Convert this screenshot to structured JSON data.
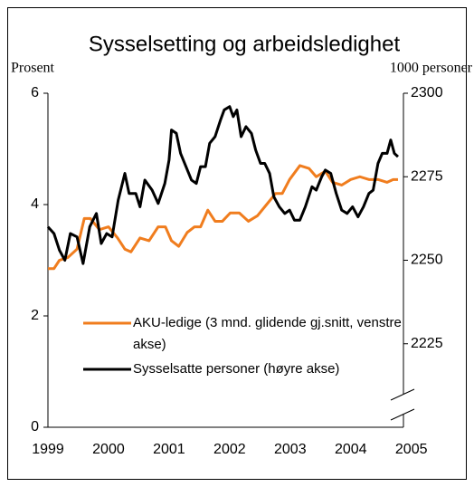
{
  "chart_data": {
    "type": "line",
    "title": "Sysselsetting og arbeidsledighet",
    "ylabel": "Prosent",
    "y2label": "1000 personer",
    "xlim": [
      1999,
      2004.87
    ],
    "xticks": [
      1999,
      2000,
      2001,
      2002,
      2003,
      2004,
      2005
    ],
    "ylim": [
      0,
      6
    ],
    "yticks": [
      0,
      2,
      4,
      6
    ],
    "y2lim": [
      2200,
      2300
    ],
    "y2ticks": [
      2225,
      2250,
      2275,
      2300
    ],
    "series": [
      {
        "name": "AKU-ledige (3 mnd. glidende gj.snitt, venstre akse)",
        "color": "#f07d1e",
        "x": [
          1999.0,
          1999.1,
          1999.19,
          1999.33,
          1999.48,
          1999.6,
          1999.7,
          1999.85,
          2000.0,
          2000.15,
          2000.27,
          2000.37,
          2000.52,
          2000.67,
          2000.82,
          2000.94,
          2001.04,
          2001.16,
          2001.3,
          2001.42,
          2001.52,
          2001.64,
          2001.76,
          2001.88,
          2002.01,
          2002.16,
          2002.31,
          2002.46,
          2002.61,
          2002.76,
          2002.87,
          2002.99,
          2003.16,
          2003.31,
          2003.43,
          2003.58,
          2003.7,
          2003.85,
          2004.0,
          2004.15,
          2004.3,
          2004.45,
          2004.6,
          2004.7,
          2004.78
        ],
        "values": [
          2.85,
          2.85,
          3.0,
          3.05,
          3.2,
          3.75,
          3.75,
          3.55,
          3.6,
          3.4,
          3.2,
          3.15,
          3.4,
          3.35,
          3.6,
          3.6,
          3.35,
          3.25,
          3.5,
          3.6,
          3.6,
          3.9,
          3.7,
          3.7,
          3.85,
          3.85,
          3.7,
          3.8,
          4.0,
          4.2,
          4.2,
          4.45,
          4.7,
          4.65,
          4.5,
          4.6,
          4.4,
          4.35,
          4.45,
          4.5,
          4.45,
          4.45,
          4.4,
          4.45,
          4.45
        ]
      },
      {
        "name": "Sysselsatte personer (høyre akse)",
        "color": "#000000",
        "axis": "y2",
        "x": [
          1999.0,
          1999.1,
          1999.19,
          1999.28,
          1999.37,
          1999.48,
          1999.58,
          1999.69,
          1999.8,
          1999.88,
          1999.97,
          2000.06,
          2000.16,
          2000.27,
          2000.34,
          2000.45,
          2000.52,
          2000.6,
          2000.72,
          2000.82,
          2000.93,
          2001.0,
          2001.04,
          2001.12,
          2001.19,
          2001.28,
          2001.37,
          2001.45,
          2001.52,
          2001.6,
          2001.67,
          2001.76,
          2001.85,
          2001.91,
          2002.0,
          2002.06,
          2002.12,
          2002.19,
          2002.27,
          2002.36,
          2002.43,
          2002.51,
          2002.58,
          2002.66,
          2002.73,
          2002.82,
          2002.91,
          2002.99,
          2003.07,
          2003.16,
          2003.25,
          2003.36,
          2003.43,
          2003.52,
          2003.58,
          2003.67,
          2003.76,
          2003.85,
          2003.94,
          2004.03,
          2004.12,
          2004.21,
          2004.3,
          2004.37,
          2004.45,
          2004.52,
          2004.6,
          2004.66,
          2004.72,
          2004.78
        ],
        "values": [
          2260,
          2258,
          2253,
          2250,
          2258,
          2257,
          2249,
          2260,
          2264,
          2255,
          2258,
          2257,
          2268,
          2276,
          2270,
          2270,
          2266,
          2274,
          2271,
          2267,
          2273,
          2280,
          2289,
          2288,
          2282,
          2278,
          2274,
          2273,
          2278,
          2278,
          2285,
          2287,
          2292,
          2295,
          2296,
          2293,
          2295,
          2287,
          2290,
          2288,
          2283,
          2279,
          2279,
          2276,
          2269,
          2266,
          2264,
          2265,
          2262,
          2262,
          2266,
          2272,
          2271,
          2275,
          2277,
          2276,
          2270,
          2265,
          2264,
          2266,
          2263,
          2266,
          2270,
          2271,
          2279,
          2282,
          2282,
          2286,
          2282,
          2281
        ]
      }
    ]
  }
}
